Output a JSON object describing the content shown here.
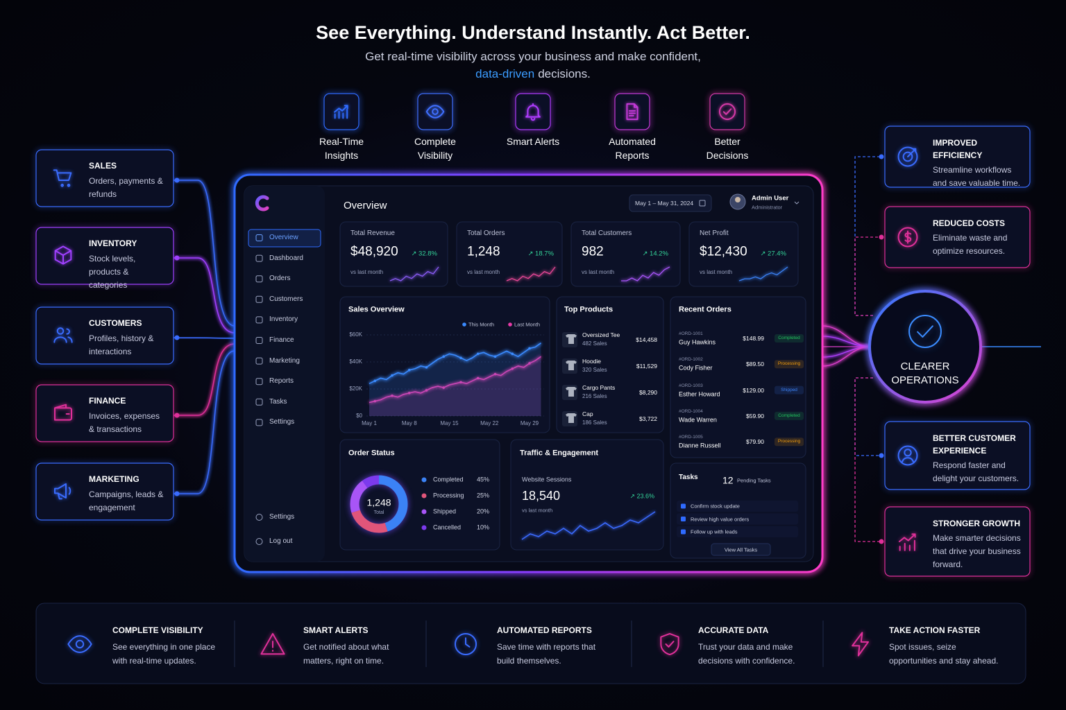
{
  "header": {
    "title": "See Everything. Understand Instantly. Act Better.",
    "subtitle": "Get real-time visibility across your business and make confident,",
    "subtitle_highlight": "data-driven",
    "subtitle_end": "decisions."
  },
  "features": [
    {
      "label": "Real-Time Insights"
    },
    {
      "label": "Complete Visibility"
    },
    {
      "label": "Smart Alerts"
    },
    {
      "label": "Automated Reports"
    },
    {
      "label": "Better Decisions"
    }
  ],
  "modules": [
    {
      "title": "SALES",
      "desc": "Orders, payments & refunds"
    },
    {
      "title": "INVENTORY",
      "desc": "Stock levels, products & categories"
    },
    {
      "title": "CUSTOMERS",
      "desc": "Profiles, history & interactions"
    },
    {
      "title": "FINANCE",
      "desc": "Invoices, expenses & transactions"
    },
    {
      "title": "MARKETING",
      "desc": "Campaigns, leads & engagement"
    }
  ],
  "outcomes": [
    {
      "title": "IMPROVED EFFICIENCY",
      "desc": "Streamline workflows and save valuable time."
    },
    {
      "title": "REDUCED COSTS",
      "desc": "Eliminate waste and optimize resources."
    },
    {
      "title": "BETTER CUSTOMER EXPERIENCE",
      "desc": "Respond faster and delight your customers."
    },
    {
      "title": "STRONGER GROWTH",
      "desc": "Make smarter decisions that drive your business forward."
    }
  ],
  "center": {
    "label": "CLEARER OPERATIONS"
  },
  "dashboard": {
    "nav": [
      "Overview",
      "Dashboard",
      "Orders",
      "Customers",
      "Inventory",
      "Finance",
      "Marketing",
      "Reports",
      "Tasks",
      "Settings"
    ],
    "nav_bottom": [
      "Settings",
      "Log out"
    ],
    "page_title": "Overview",
    "date_range": "May 1 – May 31, 2024",
    "user": {
      "name": "Admin User",
      "role": "Administrator"
    },
    "kpis": [
      {
        "label": "Total Revenue",
        "value": "$48,920",
        "change": "↗ 32.8%",
        "note": "vs last month",
        "color": "#8b5cf6",
        "spark": [
          3,
          4,
          3,
          5,
          4,
          6,
          5,
          7,
          6,
          9
        ]
      },
      {
        "label": "Total Orders",
        "value": "1,248",
        "change": "↗ 18.7%",
        "note": "vs last month",
        "color": "#ec4899",
        "spark": [
          2,
          3,
          2,
          4,
          3,
          5,
          4,
          6,
          5,
          8
        ]
      },
      {
        "label": "Total Customers",
        "value": "982",
        "change": "↗ 14.2%",
        "note": "vs last month",
        "color": "#a855f7",
        "spark": [
          2,
          2,
          3,
          2,
          4,
          3,
          5,
          4,
          6,
          7
        ]
      },
      {
        "label": "Net Profit",
        "value": "$12,430",
        "change": "↗ 27.4%",
        "note": "vs last month",
        "color": "#3b82f6",
        "spark": [
          2,
          3,
          3,
          4,
          3,
          5,
          6,
          5,
          7,
          9
        ]
      }
    ],
    "sales_overview": {
      "type": "line",
      "title": "Sales Overview",
      "categories": [
        "May 1",
        null,
        null,
        null,
        null,
        null,
        null,
        "May 8",
        null,
        null,
        null,
        null,
        null,
        null,
        "May 15",
        null,
        null,
        null,
        null,
        null,
        null,
        "May 22",
        null,
        null,
        null,
        null,
        null,
        null,
        "May 29",
        null,
        null
      ],
      "series": [
        {
          "name": "This Month",
          "color": "#3b8bff",
          "values": [
            24000,
            26000,
            28000,
            27000,
            30000,
            32000,
            31000,
            34000,
            35000,
            37000,
            36000,
            39000,
            42000,
            44000,
            46000,
            45000,
            43000,
            41000,
            43000,
            46000,
            47000,
            45000,
            44000,
            46000,
            48000,
            46000,
            44000,
            47000,
            50000,
            51000,
            54000
          ]
        },
        {
          "name": "Last Month",
          "color": "#e83aa8",
          "values": [
            10000,
            11000,
            12000,
            14000,
            15000,
            14000,
            16000,
            17000,
            18000,
            17000,
            19000,
            21000,
            22000,
            21000,
            23000,
            24000,
            25000,
            24000,
            26000,
            28000,
            27000,
            29000,
            31000,
            30000,
            33000,
            35000,
            37000,
            36000,
            39000,
            41000,
            44000
          ]
        }
      ],
      "ylim": [
        0,
        60000
      ],
      "yticks": [
        {
          "value": 0,
          "label": "$0"
        },
        {
          "value": 20000,
          "label": "$20K"
        },
        {
          "value": 40000,
          "label": "$40K"
        },
        {
          "value": 60000,
          "label": "$60K"
        }
      ],
      "grid": true
    },
    "top_products": {
      "title": "Top Products",
      "items": [
        {
          "name": "Oversized Tee",
          "sales": "482 Sales",
          "amount": "$14,458"
        },
        {
          "name": "Hoodie",
          "sales": "320 Sales",
          "amount": "$11,529"
        },
        {
          "name": "Cargo Pants",
          "sales": "216 Sales",
          "amount": "$8,290"
        },
        {
          "name": "Cap",
          "sales": "186 Sales",
          "amount": "$3,722"
        }
      ]
    },
    "recent_orders": {
      "title": "Recent Orders",
      "items": [
        {
          "id": "#ORD-1001",
          "name": "Guy Hawkins",
          "amount": "$148.99",
          "status": "Completed",
          "color": "#22c55e"
        },
        {
          "id": "#ORD-1002",
          "name": "Cody Fisher",
          "amount": "$89.50",
          "status": "Processing",
          "color": "#f59e0b"
        },
        {
          "id": "#ORD-1003",
          "name": "Esther Howard",
          "amount": "$129.00",
          "status": "Shipped",
          "color": "#3b82f6"
        },
        {
          "id": "#ORD-1004",
          "name": "Wade Warren",
          "amount": "$59.90",
          "status": "Completed",
          "color": "#22c55e"
        },
        {
          "id": "#ORD-1005",
          "name": "Dianne Russell",
          "amount": "$79.90",
          "status": "Processing",
          "color": "#f59e0b"
        }
      ]
    },
    "order_status": {
      "type": "donut",
      "title": "Order Status",
      "total": "1,248",
      "total_label": "Total",
      "items": [
        {
          "name": "Completed",
          "value": 45,
          "label": "45%",
          "color": "#3b82f6"
        },
        {
          "name": "Processing",
          "value": 25,
          "label": "25%",
          "color": "#e0557a"
        },
        {
          "name": "Shipped",
          "value": 20,
          "label": "20%",
          "color": "#a855f7"
        },
        {
          "name": "Cancelled",
          "value": 10,
          "label": "10%",
          "color": "#7c3aed"
        }
      ]
    },
    "traffic": {
      "title": "Traffic & Engagement",
      "metric": "Website Sessions",
      "value": "18,540",
      "change": "↗ 23.6%",
      "note": "vs last month",
      "color": "#3b6bff",
      "spark": [
        3,
        5,
        4,
        6,
        5,
        7,
        5,
        8,
        6,
        7,
        9,
        7,
        8,
        10,
        9,
        11,
        13
      ]
    },
    "tasks": {
      "title": "Tasks",
      "count": "12",
      "count_label": "Pending Tasks",
      "items": [
        "Confirm stock update",
        "Review high value orders",
        "Follow up with leads"
      ],
      "button": "View All Tasks"
    }
  },
  "benefits": [
    {
      "title": "COMPLETE VISIBILITY",
      "desc": "See everything in one place with real-time updates."
    },
    {
      "title": "SMART ALERTS",
      "desc": "Get notified about what matters, right on time."
    },
    {
      "title": "AUTOMATED REPORTS",
      "desc": "Save time with reports that build themselves."
    },
    {
      "title": "ACCURATE DATA",
      "desc": "Trust your data and make decisions with confidence."
    },
    {
      "title": "TAKE ACTION FASTER",
      "desc": "Spot issues, seize opportunities and stay ahead."
    }
  ]
}
